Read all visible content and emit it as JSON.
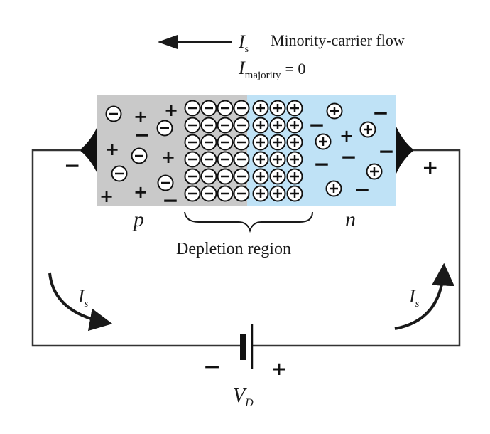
{
  "header": {
    "is_symbol": "I",
    "is_subscript": "s",
    "flow_label": "Minority-carrier flow",
    "majority_symbol": "I",
    "majority_subscript": "majority",
    "majority_value": "= 0"
  },
  "junction": {
    "p_label": "p",
    "n_label": "n",
    "depletion_label": "Depletion region",
    "colors": {
      "p_region": "#c9c9c9",
      "n_region": "#bfe2f6",
      "wire": "#333333"
    }
  },
  "terminals": {
    "left_sign": "−",
    "right_sign": "+"
  },
  "circuit": {
    "left_current_symbol": "I",
    "left_current_subscript": "s",
    "right_current_symbol": "I",
    "right_current_subscript": "s"
  },
  "battery": {
    "minus": "−",
    "plus": "+",
    "symbol": "V",
    "subscript": "D"
  }
}
